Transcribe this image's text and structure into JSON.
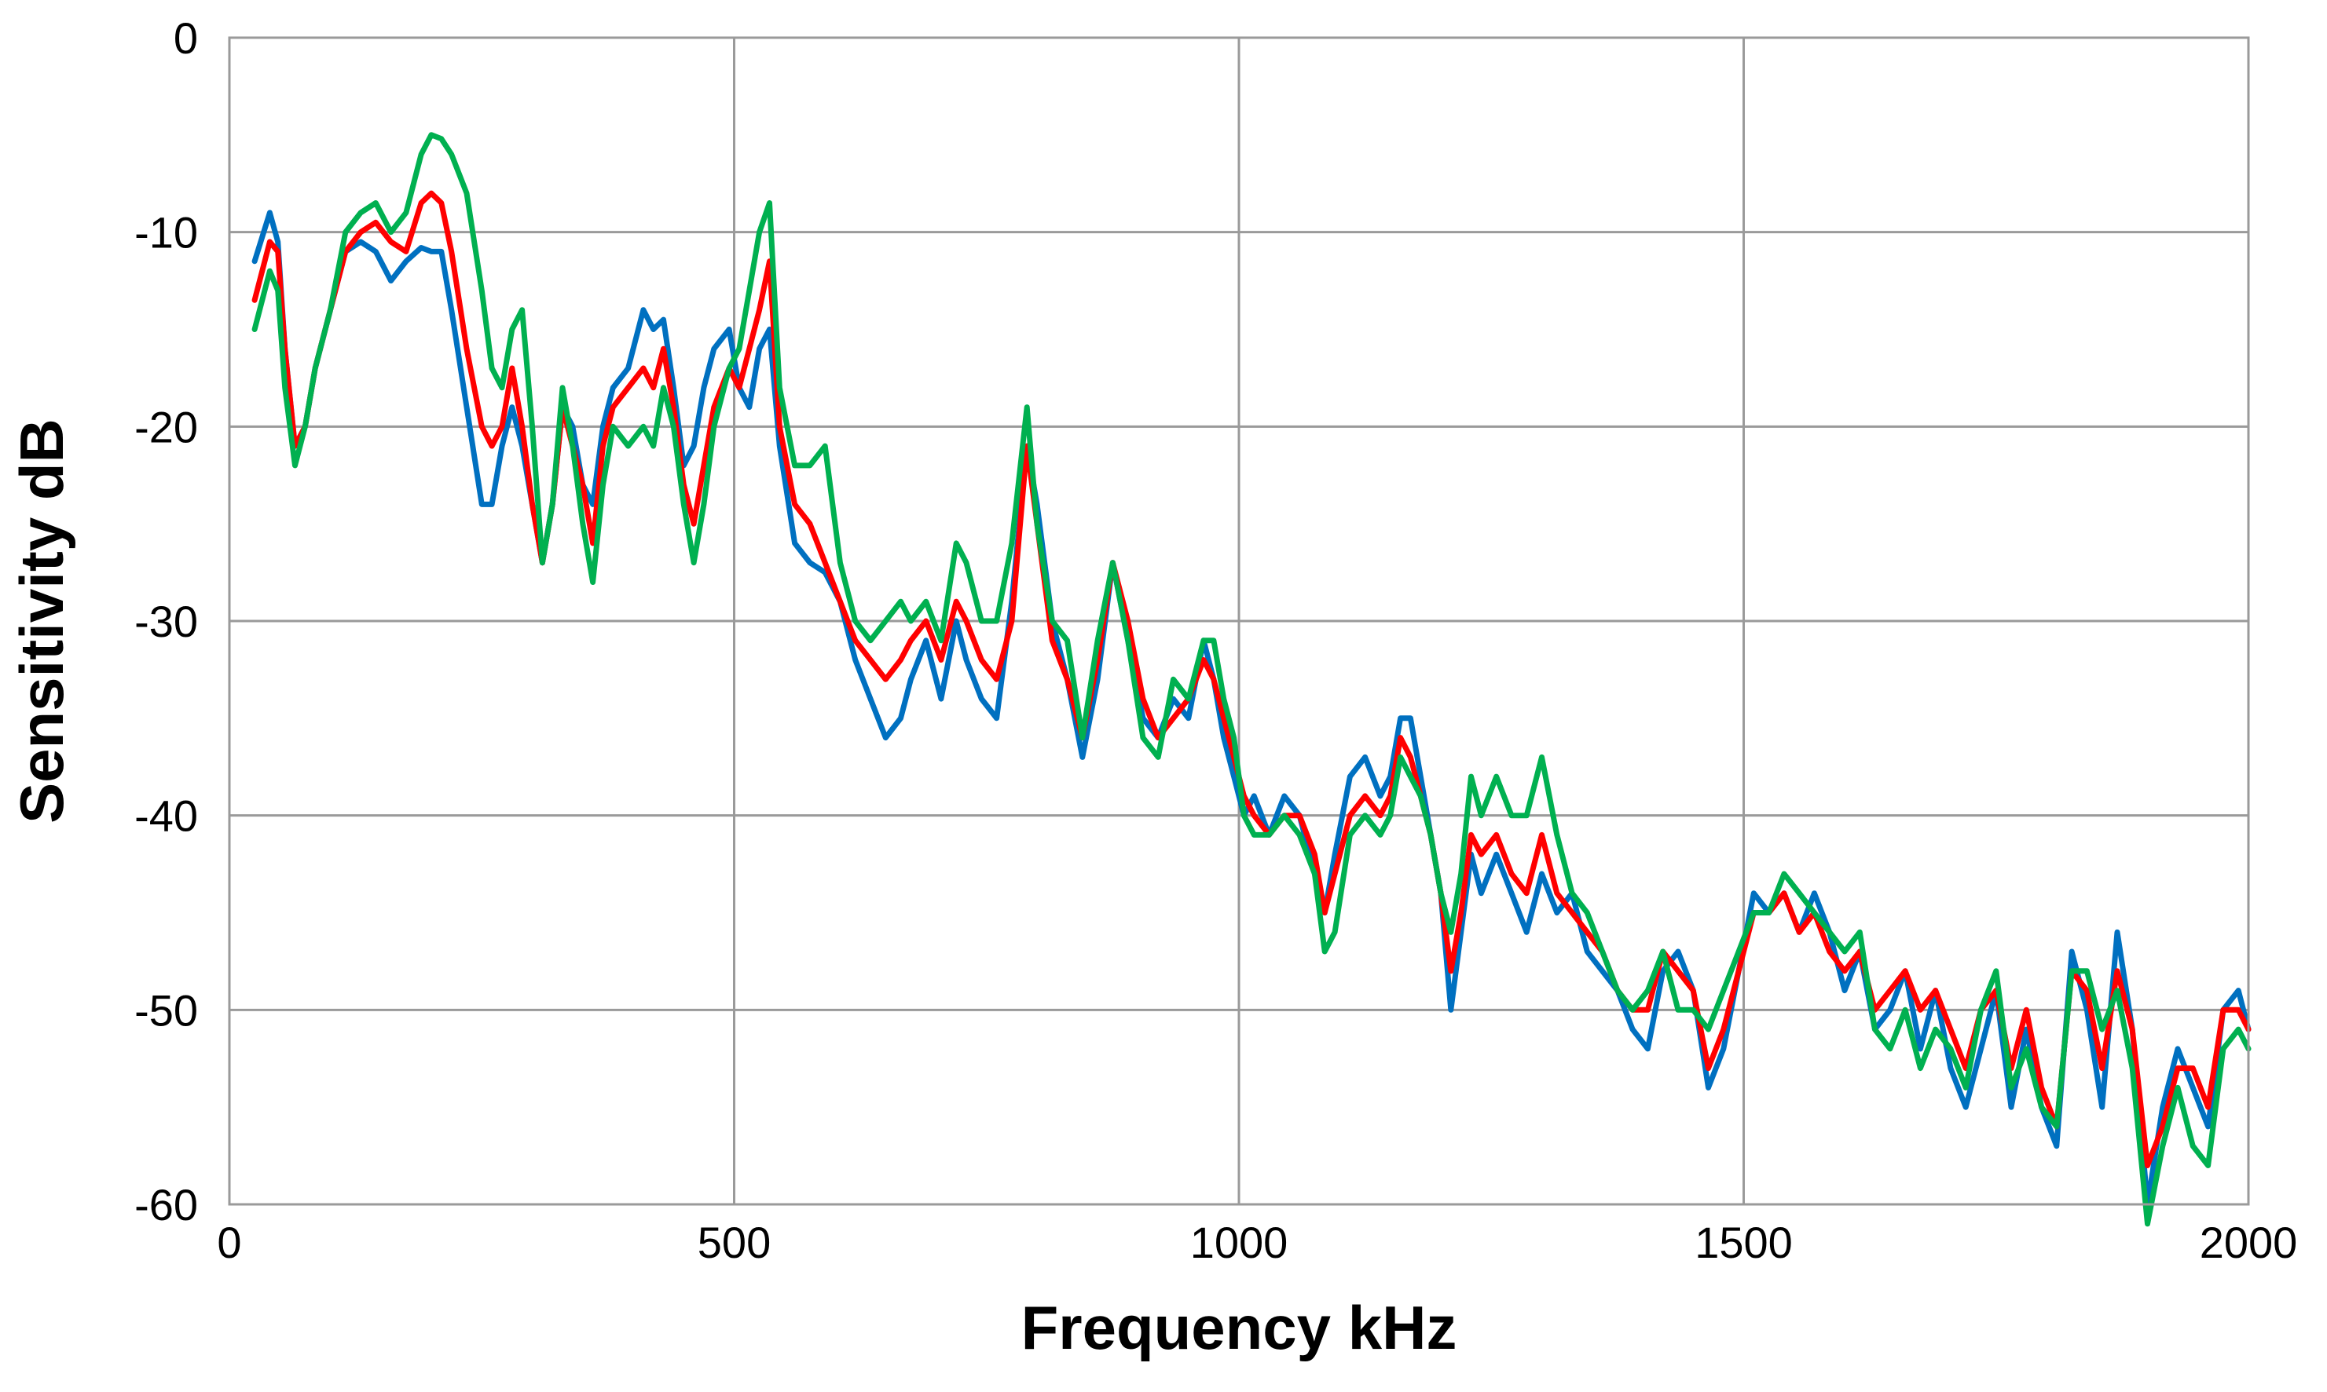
{
  "chart_data": {
    "type": "line",
    "title": "",
    "xlabel": "Frequency  kHz",
    "ylabel": "Sensitivity  dB",
    "xlim": [
      0,
      2000
    ],
    "ylim": [
      -60,
      0
    ],
    "xticks": [
      0,
      500,
      1000,
      1500,
      2000
    ],
    "xtick_labels": [
      "0",
      "500",
      "1000",
      "1500",
      "2000"
    ],
    "yticks": [
      0,
      -10,
      -20,
      -30,
      -40,
      -50,
      -60
    ],
    "ytick_labels": [
      "0",
      "-10",
      "-20",
      "-30",
      "-40",
      "-50",
      "-60"
    ],
    "grid": true,
    "legend": "none",
    "series": [
      {
        "color": "#0070C0",
        "x": [
          25,
          40,
          48,
          55,
          65,
          75,
          85,
          100,
          115,
          130,
          145,
          160,
          175,
          190,
          200,
          210,
          220,
          235,
          250,
          260,
          270,
          280,
          290,
          300,
          310,
          320,
          330,
          340,
          350,
          360,
          370,
          380,
          395,
          410,
          420,
          430,
          440,
          450,
          460,
          470,
          480,
          495,
          505,
          515,
          525,
          535,
          545,
          560,
          575,
          590,
          605,
          620,
          635,
          650,
          665,
          675,
          690,
          705,
          720,
          730,
          745,
          760,
          775,
          790,
          800,
          815,
          830,
          845,
          860,
          875,
          890,
          905,
          920,
          935,
          950,
          965,
          975,
          985,
          995,
          1005,
          1015,
          1030,
          1045,
          1060,
          1075,
          1085,
          1095,
          1110,
          1125,
          1140,
          1150,
          1160,
          1170,
          1180,
          1190,
          1200,
          1210,
          1220,
          1230,
          1240,
          1255,
          1270,
          1285,
          1300,
          1315,
          1330,
          1345,
          1360,
          1375,
          1390,
          1405,
          1420,
          1435,
          1450,
          1465,
          1480,
          1495,
          1510,
          1525,
          1540,
          1555,
          1570,
          1585,
          1600,
          1615,
          1630,
          1645,
          1660,
          1675,
          1690,
          1705,
          1720,
          1735,
          1750,
          1765,
          1780,
          1795,
          1810,
          1825,
          1840,
          1855,
          1870,
          1885,
          1900,
          1915,
          1930,
          1945,
          1960,
          1975,
          1990,
          2000
        ],
        "y": [
          -11.5,
          -9,
          -10.5,
          -16,
          -21,
          -20,
          -17,
          -14,
          -11,
          -10.5,
          -11,
          -12.5,
          -11.5,
          -10.8,
          -11,
          -11,
          -14,
          -19,
          -24,
          -24,
          -21,
          -19,
          -21,
          -24,
          -27,
          -24,
          -19,
          -20,
          -23,
          -24,
          -20,
          -18,
          -17,
          -14,
          -15,
          -14.5,
          -18,
          -22,
          -21,
          -18,
          -16,
          -15,
          -18,
          -19,
          -16,
          -15,
          -21,
          -26,
          -27,
          -27.5,
          -29,
          -32,
          -34,
          -36,
          -35,
          -33,
          -31,
          -34,
          -30,
          -32,
          -34,
          -35,
          -29,
          -21,
          -24,
          -30,
          -33,
          -37,
          -33,
          -27,
          -31,
          -35,
          -36,
          -34,
          -35,
          -31,
          -33,
          -36,
          -38,
          -40,
          -39,
          -41,
          -39,
          -40,
          -43,
          -45,
          -42,
          -38,
          -37,
          -39,
          -38,
          -35,
          -35,
          -38,
          -41,
          -44,
          -50,
          -46,
          -42,
          -44,
          -42,
          -44,
          -46,
          -43,
          -45,
          -44,
          -47,
          -48,
          -49,
          -51,
          -52,
          -48,
          -47,
          -49,
          -54,
          -52,
          -48,
          -44,
          -45,
          -44,
          -46,
          -44,
          -46,
          -49,
          -47,
          -51,
          -50,
          -48,
          -52,
          -49,
          -53,
          -55,
          -52,
          -49,
          -55,
          -51,
          -55,
          -57,
          -47,
          -50,
          -55,
          -46,
          -51,
          -60,
          -55,
          -52,
          -54,
          -56,
          -50,
          -49,
          -51
        ],
        "name": ""
      },
      {
        "color": "#FF0000",
        "x": [
          25,
          40,
          48,
          55,
          65,
          75,
          85,
          100,
          115,
          130,
          145,
          160,
          175,
          190,
          200,
          210,
          220,
          235,
          250,
          260,
          270,
          280,
          290,
          300,
          310,
          320,
          330,
          340,
          350,
          360,
          370,
          380,
          395,
          410,
          420,
          430,
          440,
          450,
          460,
          470,
          480,
          495,
          505,
          515,
          525,
          535,
          545,
          560,
          575,
          590,
          605,
          620,
          635,
          650,
          665,
          675,
          690,
          705,
          720,
          730,
          745,
          760,
          775,
          790,
          800,
          815,
          830,
          845,
          860,
          875,
          890,
          905,
          920,
          935,
          950,
          965,
          975,
          985,
          995,
          1005,
          1015,
          1030,
          1045,
          1060,
          1075,
          1085,
          1095,
          1110,
          1125,
          1140,
          1150,
          1160,
          1170,
          1180,
          1190,
          1200,
          1210,
          1220,
          1230,
          1240,
          1255,
          1270,
          1285,
          1300,
          1315,
          1330,
          1345,
          1360,
          1375,
          1390,
          1405,
          1420,
          1435,
          1450,
          1465,
          1480,
          1495,
          1510,
          1525,
          1540,
          1555,
          1570,
          1585,
          1600,
          1615,
          1630,
          1645,
          1660,
          1675,
          1690,
          1705,
          1720,
          1735,
          1750,
          1765,
          1780,
          1795,
          1810,
          1825,
          1840,
          1855,
          1870,
          1885,
          1900,
          1915,
          1930,
          1945,
          1960,
          1975,
          1990,
          2000
        ],
        "y": [
          -13.5,
          -10.5,
          -11,
          -16,
          -21,
          -20,
          -17,
          -14,
          -11,
          -10,
          -9.5,
          -10.5,
          -11,
          -8.5,
          -8,
          -8.5,
          -11,
          -16,
          -20,
          -21,
          -20,
          -17,
          -20,
          -24,
          -27,
          -24,
          -19,
          -21,
          -23,
          -26,
          -21,
          -19,
          -18,
          -17,
          -18,
          -16,
          -19,
          -23,
          -25,
          -22,
          -19,
          -17,
          -18,
          -16,
          -14,
          -11.5,
          -20,
          -24,
          -25,
          -27,
          -29,
          -31,
          -32,
          -33,
          -32,
          -31,
          -30,
          -32,
          -29,
          -30,
          -32,
          -33,
          -30,
          -21,
          -25,
          -31,
          -33,
          -36,
          -32,
          -27,
          -30,
          -34,
          -36,
          -35,
          -34,
          -32,
          -33,
          -35,
          -37,
          -39,
          -40,
          -41,
          -40,
          -40,
          -42,
          -45,
          -43,
          -40,
          -39,
          -40,
          -39,
          -36,
          -37,
          -39,
          -41,
          -44,
          -48,
          -45,
          -41,
          -42,
          -41,
          -43,
          -44,
          -41,
          -44,
          -45,
          -46,
          -47,
          -49,
          -50,
          -50,
          -47,
          -48,
          -49,
          -53,
          -51,
          -48,
          -45,
          -45,
          -44,
          -46,
          -45,
          -47,
          -48,
          -47,
          -50,
          -49,
          -48,
          -50,
          -49,
          -51,
          -53,
          -50,
          -49,
          -53,
          -50,
          -54,
          -56,
          -48,
          -49,
          -53,
          -48,
          -51,
          -58,
          -56,
          -53,
          -53,
          -55,
          -50,
          -50,
          -51
        ],
        "name": ""
      },
      {
        "color": "#00B050",
        "x": [
          25,
          40,
          48,
          55,
          65,
          75,
          85,
          100,
          115,
          130,
          145,
          160,
          175,
          190,
          200,
          210,
          220,
          235,
          250,
          260,
          270,
          280,
          290,
          300,
          310,
          320,
          330,
          340,
          350,
          360,
          370,
          380,
          395,
          410,
          420,
          430,
          440,
          450,
          460,
          470,
          480,
          495,
          505,
          515,
          525,
          535,
          545,
          560,
          575,
          590,
          605,
          620,
          635,
          650,
          665,
          675,
          690,
          705,
          720,
          730,
          745,
          760,
          775,
          790,
          800,
          815,
          830,
          845,
          860,
          875,
          890,
          905,
          920,
          935,
          950,
          965,
          975,
          985,
          995,
          1005,
          1015,
          1030,
          1045,
          1060,
          1075,
          1085,
          1095,
          1110,
          1125,
          1140,
          1150,
          1160,
          1170,
          1180,
          1190,
          1200,
          1210,
          1220,
          1230,
          1240,
          1255,
          1270,
          1285,
          1300,
          1315,
          1330,
          1345,
          1360,
          1375,
          1390,
          1405,
          1420,
          1435,
          1450,
          1465,
          1480,
          1495,
          1510,
          1525,
          1540,
          1555,
          1570,
          1585,
          1600,
          1615,
          1630,
          1645,
          1660,
          1675,
          1690,
          1705,
          1720,
          1735,
          1750,
          1765,
          1780,
          1795,
          1810,
          1825,
          1840,
          1855,
          1870,
          1885,
          1900,
          1915,
          1930,
          1945,
          1960,
          1975,
          1990,
          2000
        ],
        "y": [
          -15,
          -12,
          -13,
          -18,
          -22,
          -20,
          -17,
          -14,
          -10,
          -9,
          -8.5,
          -10,
          -9,
          -6,
          -5,
          -5.2,
          -6,
          -8,
          -13,
          -17,
          -18,
          -15,
          -14,
          -20,
          -27,
          -24,
          -18,
          -21,
          -25,
          -28,
          -23,
          -20,
          -21,
          -20,
          -21,
          -18,
          -20,
          -24,
          -27,
          -24,
          -20,
          -17,
          -16,
          -13,
          -10,
          -8.5,
          -18,
          -22,
          -22,
          -21,
          -27,
          -30,
          -31,
          -30,
          -29,
          -30,
          -29,
          -31,
          -26,
          -27,
          -30,
          -30,
          -26,
          -19,
          -25,
          -30,
          -31,
          -36,
          -31,
          -27,
          -31,
          -36,
          -37,
          -33,
          -34,
          -31,
          -31,
          -34,
          -36,
          -40,
          -41,
          -41,
          -40,
          -41,
          -43,
          -47,
          -46,
          -41,
          -40,
          -41,
          -40,
          -37,
          -38,
          -39,
          -41,
          -44,
          -46,
          -43,
          -38,
          -40,
          -38,
          -40,
          -40,
          -37,
          -41,
          -44,
          -45,
          -47,
          -49,
          -50,
          -49,
          -47,
          -50,
          -50,
          -51,
          -49,
          -47,
          -45,
          -45,
          -43,
          -44,
          -45,
          -46,
          -47,
          -46,
          -51,
          -52,
          -50,
          -53,
          -51,
          -52,
          -54,
          -50,
          -48,
          -54,
          -52,
          -55,
          -56,
          -48,
          -48,
          -51,
          -49,
          -53,
          -61,
          -57,
          -54,
          -57,
          -58,
          -52,
          -51,
          -52
        ],
        "name": ""
      }
    ]
  }
}
